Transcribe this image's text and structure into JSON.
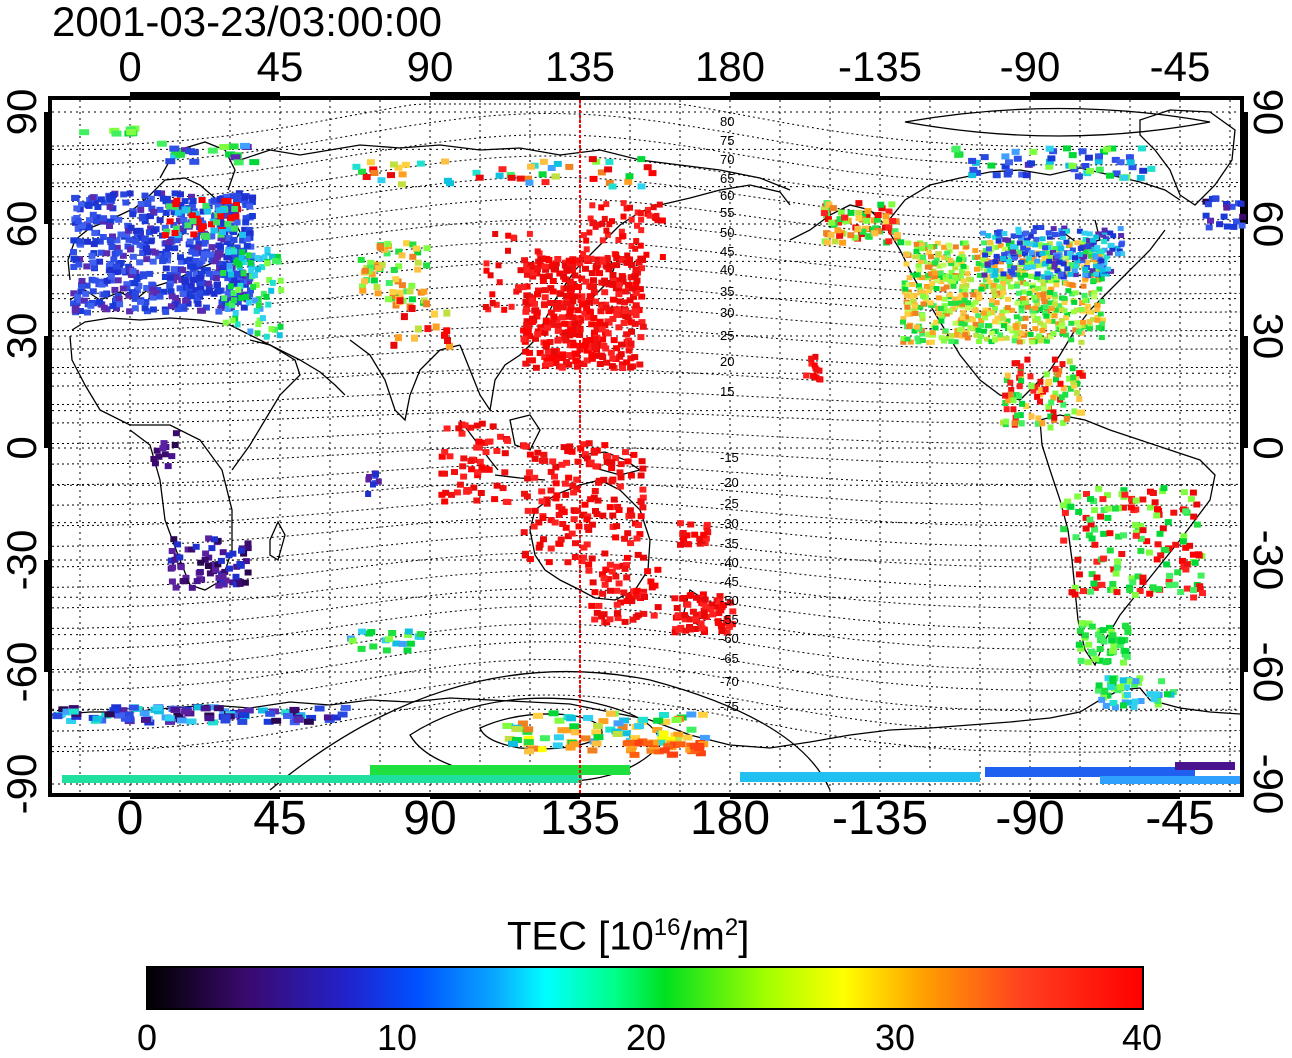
{
  "title": "2001-03-23/03:00:00",
  "lon_ticks": [
    "0",
    "45",
    "90",
    "135",
    "180",
    "-135",
    "-90",
    "-45"
  ],
  "lat_ticks": [
    "90",
    "60",
    "30",
    "0",
    "-30",
    "-60",
    "-90"
  ],
  "contour_labels": [
    "80",
    "75",
    "70",
    "65",
    "60",
    "55",
    "50",
    "45",
    "40",
    "35",
    "30",
    "25",
    "20",
    "15",
    "-15",
    "-20",
    "-25",
    "-30",
    "-35",
    "-40",
    "-45",
    "-50",
    "-55",
    "-60",
    "-65",
    "-70",
    "-75"
  ],
  "colorbar": {
    "title": "TEC  [10",
    "title_exp": "16",
    "title_unit": "/m",
    "title_unit_exp": "2",
    "title_end": "]",
    "ticks": [
      "0",
      "10",
      "20",
      "30",
      "40"
    ],
    "range": [
      0,
      40
    ]
  },
  "colors": {
    "frame": "#000000",
    "subsolar_line": "#ff0000"
  },
  "map_layers": [
    "dotted-grid",
    "coastlines",
    "magnetic-latitude-contours",
    "tec-observations",
    "subsolar-meridian-line"
  ]
}
